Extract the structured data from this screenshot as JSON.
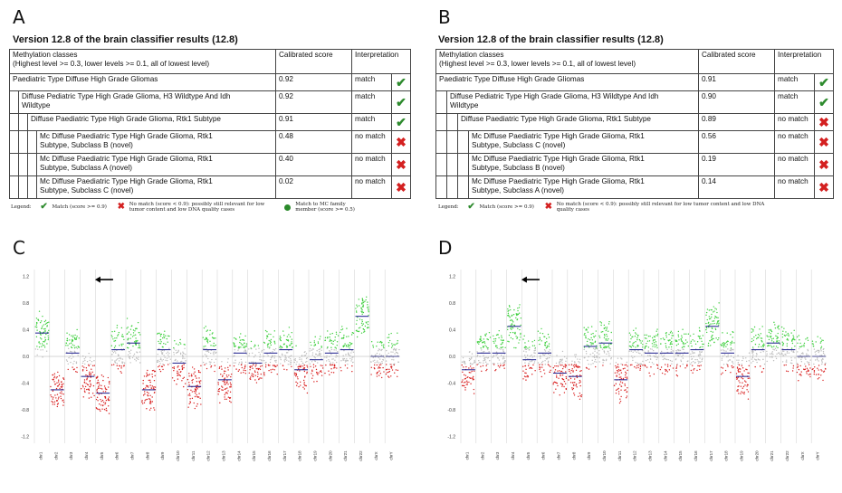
{
  "panels": {
    "A": {
      "letter": "A",
      "title": "Version 12.8 of the brain classifier results (12.8)",
      "header": {
        "classes_line1": "Methylation classes",
        "classes_line2": "(Highest level >= 0.3, lower levels >= 0.1, all of lowest level)",
        "score": "Calibrated score",
        "interpretation": "Interpretation"
      },
      "rows": [
        {
          "name_line1": "Paediatric Type Diffuse High Grade Gliomas",
          "name_line2": "",
          "score": "0.92",
          "interp": "match"
        },
        {
          "name_line1": "Diffuse Pediatric Type High Grade Glioma, H3 Wildtype And Idh",
          "name_line2": "Wildtype",
          "score": "0.92",
          "interp": "match"
        },
        {
          "name_line1": "Diffuse Paediatric Type High Grade Glioma, Rtk1 Subtype",
          "name_line2": "",
          "score": "0.91",
          "interp": "match"
        },
        {
          "name_line1": "Mc Diffuse Paediatric Type High Grade Glioma, Rtk1",
          "name_line2": "Subtype, Subclass B (novel)",
          "score": "0.48",
          "interp": "no match"
        },
        {
          "name_line1": "Mc Diffuse Paediatric Type High Grade Glioma, Rtk1",
          "name_line2": "Subtype, Subclass A (novel)",
          "score": "0.40",
          "interp": "no match"
        },
        {
          "name_line1": "Mc Diffuse Paediatric Type High Grade Glioma, Rtk1",
          "name_line2": "Subtype, Subclass C (novel)",
          "score": "0.02",
          "interp": "no match"
        }
      ],
      "legend": {
        "label": "Legend:",
        "match": "Match (score >= 0.9)",
        "nomatch": "No match (score < 0.9): possibly still relevant for low tumor content and low DNA quality cases",
        "family": "Match to MC family member (score >= 0.5)"
      }
    },
    "B": {
      "letter": "B",
      "title": "Version 12.8 of the brain classifier results (12.8)",
      "header": {
        "classes_line1": "Methylation classes",
        "classes_line2": "(Highest level >= 0.3, lower levels >= 0.1, all of lowest level)",
        "score": "Calibrated score",
        "interpretation": "Interpretation"
      },
      "rows": [
        {
          "name_line1": "Paediatric Type Diffuse High Grade Gliomas",
          "name_line2": "",
          "score": "0.91",
          "interp": "match"
        },
        {
          "name_line1": "Diffuse Pediatric Type High Grade Glioma, H3 Wildtype And Idh",
          "name_line2": "Wildtype",
          "score": "0.90",
          "interp": "match"
        },
        {
          "name_line1": "Diffuse Paediatric Type High Grade Glioma, Rtk1 Subtype",
          "name_line2": "",
          "score": "0.89",
          "interp": "no match"
        },
        {
          "name_line1": "Mc Diffuse Paediatric Type High Grade Glioma, Rtk1",
          "name_line2": "Subtype, Subclass C (novel)",
          "score": "0.56",
          "interp": "no match"
        },
        {
          "name_line1": "Mc Diffuse Paediatric Type High Grade Glioma, Rtk1",
          "name_line2": "Subtype, Subclass B (novel)",
          "score": "0.19",
          "interp": "no match"
        },
        {
          "name_line1": "Mc Diffuse Paediatric Type High Grade Glioma, Rtk1",
          "name_line2": "Subtype, Subclass A (novel)",
          "score": "0.14",
          "interp": "no match"
        }
      ],
      "legend": {
        "label": "Legend:",
        "match": "Match (score >= 0.9)",
        "nomatch": "No match (score < 0.9): possibly still relevant for low tumor content and low DNA quality cases"
      }
    },
    "C": {
      "letter": "C",
      "y_ticks": [
        "1.2",
        "0.8",
        "0.4",
        "0.0",
        "-0.4",
        "-0.8",
        "-1.2"
      ],
      "chromosomes": [
        "chr1",
        "chr2",
        "chr3",
        "chr4",
        "chr5",
        "chr6",
        "chr7",
        "chr8",
        "chr9",
        "chr10",
        "chr11",
        "chr12",
        "chr13",
        "chr14",
        "chr15",
        "chr16",
        "chr17",
        "chr18",
        "chr19",
        "chr20",
        "chr21",
        "chr22",
        "chrX",
        "chrY"
      ]
    },
    "D": {
      "letter": "D",
      "y_ticks": [
        "1.2",
        "0.8",
        "0.4",
        "0.0",
        "-0.4",
        "-0.8",
        "-1.2"
      ],
      "chromosomes": [
        "chr1",
        "chr2",
        "chr3",
        "chr4",
        "chr5",
        "chr6",
        "chr7",
        "chr8",
        "chr9",
        "chr10",
        "chr11",
        "chr12",
        "chr13",
        "chr14",
        "chr15",
        "chr16",
        "chr17",
        "chr18",
        "chr19",
        "chr20",
        "chr21",
        "chr22",
        "chrX",
        "chrY"
      ]
    }
  },
  "colors": {
    "gain": "#3ecf3e",
    "loss": "#d81e1e",
    "neutral": "#bdbdbd",
    "segment": "#1a1a8c",
    "check": "#2e8b2e",
    "cross": "#d42020"
  },
  "icons": {
    "match": "check-icon",
    "nomatch": "cross-icon",
    "family": "green-dot-icon",
    "pointer": "arrow-left-icon"
  }
}
